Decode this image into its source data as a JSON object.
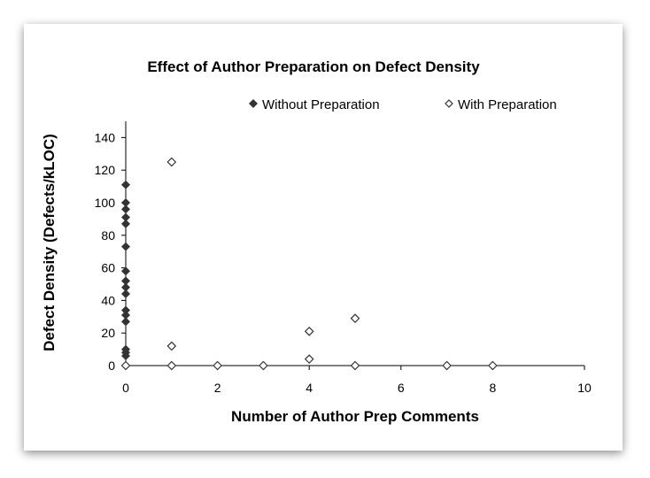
{
  "chart_data": {
    "type": "scatter",
    "title": "Effect of Author Preparation on Defect Density",
    "xlabel": "Number of Author Prep Comments",
    "ylabel": "Defect Density (Defects/kLOC)",
    "xlim": [
      0,
      10
    ],
    "ylim": [
      0,
      150
    ],
    "xticks": [
      "0",
      "2",
      "4",
      "6",
      "8",
      "10"
    ],
    "yticks": [
      "0",
      "20",
      "40",
      "60",
      "80",
      "100",
      "120",
      "140"
    ],
    "grid": false,
    "legend_position": "top",
    "series": [
      {
        "name": "Without Preparation",
        "marker": "filled-diamond",
        "color": "#333333",
        "points": [
          [
            0,
            0
          ],
          [
            0,
            6
          ],
          [
            0,
            8
          ],
          [
            0,
            10
          ],
          [
            0,
            27
          ],
          [
            0,
            31
          ],
          [
            0,
            34
          ],
          [
            0,
            44
          ],
          [
            0,
            48
          ],
          [
            0,
            52
          ],
          [
            0,
            58
          ],
          [
            0,
            73
          ],
          [
            0,
            87
          ],
          [
            0,
            91
          ],
          [
            0,
            96
          ],
          [
            0,
            100
          ],
          [
            0,
            111
          ]
        ]
      },
      {
        "name": "With Preparation",
        "marker": "hollow-diamond",
        "color": "#333333",
        "points": [
          [
            0,
            0
          ],
          [
            1,
            125
          ],
          [
            1,
            12
          ],
          [
            1,
            0
          ],
          [
            2,
            0
          ],
          [
            3,
            0
          ],
          [
            4,
            21
          ],
          [
            4,
            4
          ],
          [
            5,
            29
          ],
          [
            5,
            0
          ],
          [
            7,
            0
          ],
          [
            8,
            0
          ]
        ]
      }
    ]
  }
}
